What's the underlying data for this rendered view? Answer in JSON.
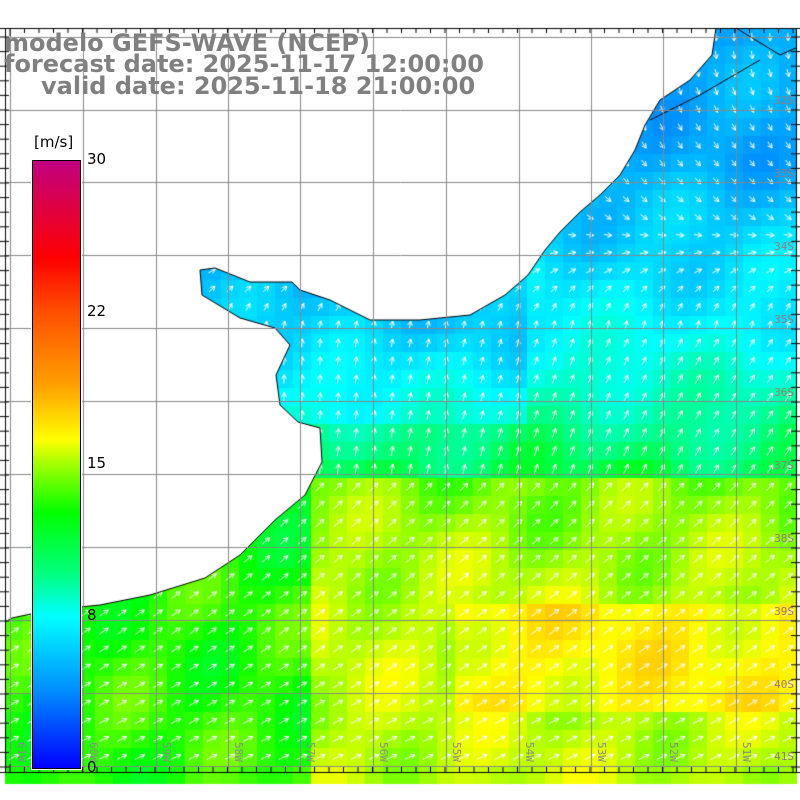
{
  "title": {
    "line1": "modelo GEFS-WAVE (NCEP)",
    "line2": "forecast date: 2025-11-17 12:00:00",
    "line3": "valid date: 2025-11-18 21:00:00"
  },
  "colorbar": {
    "unit": "[m/s]",
    "ticks": [
      "30",
      "22",
      "15",
      "8",
      "0"
    ],
    "colors": [
      "#c00080",
      "#ff0000",
      "#ffa000",
      "#ffff00",
      "#00ff00",
      "#00ffff",
      "#0000ff"
    ]
  },
  "lat_labels": [
    "32S",
    "33S",
    "34S",
    "35S",
    "36S",
    "37S",
    "38S",
    "39S",
    "40S",
    "41S"
  ],
  "lon_labels": [
    "61W",
    "60W",
    "59W",
    "58W",
    "57W",
    "56W",
    "55W",
    "54W",
    "53W",
    "52W",
    "51W"
  ],
  "colors": {
    "title": "#808080",
    "grid": "#888888",
    "coast": "#000000",
    "land": "#ffffff",
    "arrow": "#ffffff"
  }
}
